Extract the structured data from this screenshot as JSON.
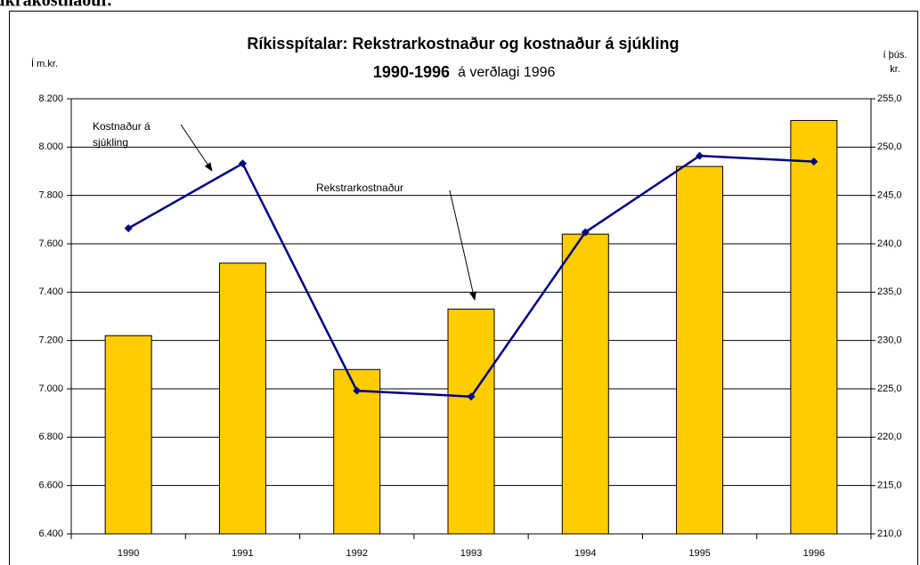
{
  "page_heading": "sjúkrakostnaður.",
  "chart_data": {
    "type": "bar-line",
    "title": "Ríkisspítalar: Rekstrarkostnaður og kostnaður á  sjúkling",
    "title_line2": "1990-1996",
    "subtitle": "á verðlagi 1996",
    "y_label": "Í m.kr.",
    "y2_label": [
      "í þús.",
      "kr."
    ],
    "categories": [
      "1990",
      "1991",
      "1992",
      "1993",
      "1994",
      "1995",
      "1996"
    ],
    "series": [
      {
        "type": "bar",
        "color": "#ffcc00",
        "values": [
          7220,
          7520,
          7080,
          7330,
          7640,
          7920,
          8110
        ]
      },
      {
        "type": "line",
        "axis": "y2",
        "color": "#000080",
        "values": [
          241.6,
          248.3,
          224.8,
          224.2,
          241.2,
          249.1,
          248.5
        ]
      }
    ],
    "annotations": [
      {
        "text": [
          "Kostnaður á",
          "sjúkling"
        ]
      },
      {
        "text": [
          "Rekstrarkostnaður"
        ]
      }
    ],
    "ylim": [
      6400,
      8200
    ],
    "yticks": [
      {
        "value": 6400,
        "label": "6.400"
      },
      {
        "value": 6600,
        "label": "6.600"
      },
      {
        "value": 6800,
        "label": "6.800"
      },
      {
        "value": 7000,
        "label": "7.000"
      },
      {
        "value": 7200,
        "label": "7.200"
      },
      {
        "value": 7400,
        "label": "7.400"
      },
      {
        "value": 7600,
        "label": "7.600"
      },
      {
        "value": 7800,
        "label": "7.800"
      },
      {
        "value": 8000,
        "label": "8.000"
      },
      {
        "value": 8200,
        "label": "8.200"
      }
    ],
    "y2lim": [
      210,
      255
    ],
    "y2ticks": [
      {
        "value": 210,
        "label": "210,0"
      },
      {
        "value": 215,
        "label": "215,0"
      },
      {
        "value": 220,
        "label": "220,0"
      },
      {
        "value": 225,
        "label": "225,0"
      },
      {
        "value": 230,
        "label": "230,0"
      },
      {
        "value": 235,
        "label": "235,0"
      },
      {
        "value": 240,
        "label": "240,0"
      },
      {
        "value": 245,
        "label": "245,0"
      },
      {
        "value": 250,
        "label": "250,0"
      },
      {
        "value": 255,
        "label": "255,0"
      }
    ],
    "grid": true
  }
}
